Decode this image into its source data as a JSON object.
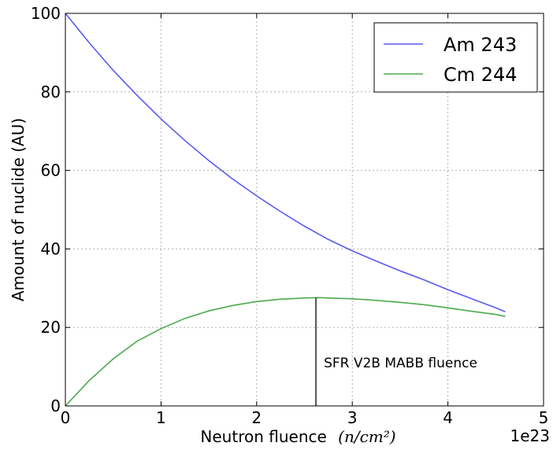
{
  "chart_data": {
    "type": "line",
    "title": "",
    "xlabel": "Neutron fluence",
    "xlabel_unit": "(n/cm²)",
    "x_offset_label": "1e23",
    "ylabel": "Amount of nuclide (AU)",
    "xlim": [
      0,
      5
    ],
    "ylim": [
      0,
      100
    ],
    "xticks": [
      0,
      1,
      2,
      3,
      4,
      5
    ],
    "yticks": [
      0,
      20,
      40,
      60,
      80,
      100
    ],
    "grid": true,
    "legend_position": "top-right",
    "series": [
      {
        "name": "Am 243",
        "color": "#5a5af0",
        "x": [
          0,
          0.25,
          0.5,
          0.75,
          1.0,
          1.25,
          1.5,
          1.75,
          2.0,
          2.25,
          2.5,
          2.75,
          3.0,
          3.25,
          3.5,
          3.75,
          4.0,
          4.25,
          4.5,
          4.6
        ],
        "values": [
          100,
          92.5,
          85.5,
          79.1,
          73.1,
          67.6,
          62.5,
          57.8,
          53.5,
          49.5,
          45.8,
          42.4,
          39.5,
          36.9,
          34.4,
          32.1,
          29.6,
          27.3,
          25.0,
          24.0
        ]
      },
      {
        "name": "Cm 244",
        "color": "#4caa4c",
        "x": [
          0,
          0.25,
          0.5,
          0.75,
          1.0,
          1.25,
          1.5,
          1.75,
          2.0,
          2.25,
          2.5,
          2.65,
          2.75,
          3.0,
          3.25,
          3.5,
          3.75,
          4.0,
          4.25,
          4.5,
          4.6
        ],
        "values": [
          0,
          6.5,
          12.0,
          16.5,
          19.7,
          22.3,
          24.2,
          25.6,
          26.6,
          27.2,
          27.5,
          27.6,
          27.5,
          27.3,
          26.9,
          26.4,
          25.8,
          25.0,
          24.1,
          23.3,
          22.8
        ]
      }
    ],
    "annotations": [
      {
        "text": "SFR V2B MABB fluence",
        "x": 2.62,
        "y_top": 27.6
      }
    ]
  }
}
